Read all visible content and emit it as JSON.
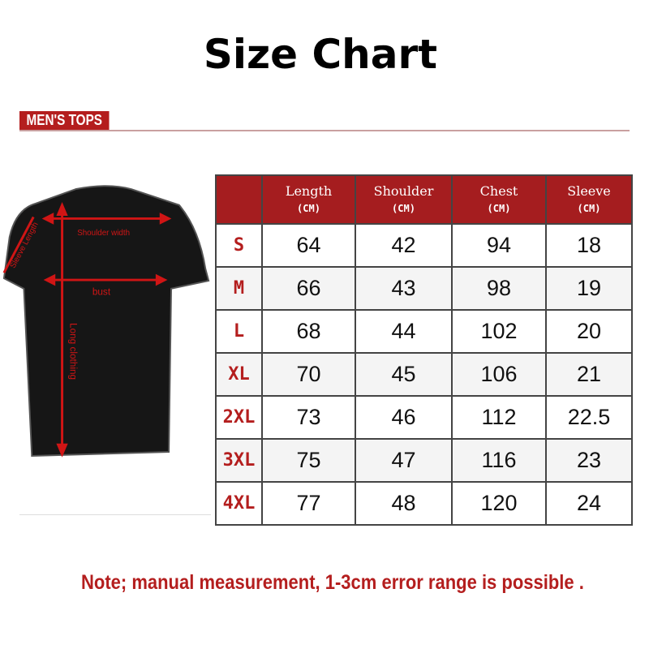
{
  "title": "Size Chart",
  "section": "MEN'S TOPS",
  "diagram": {
    "shoulder": "Shoulder width",
    "sleeve": "Sleeve Length",
    "bust": "bust",
    "length": "Long clothing"
  },
  "table": {
    "headers": [
      {
        "label": "Length",
        "unit": "(CM)"
      },
      {
        "label": "Shoulder",
        "unit": "(CM)"
      },
      {
        "label": "Chest",
        "unit": "(CM)"
      },
      {
        "label": "Sleeve",
        "unit": "(CM)"
      }
    ],
    "rows": [
      {
        "size": "S",
        "values": [
          "64",
          "42",
          "94",
          "18"
        ]
      },
      {
        "size": "M",
        "values": [
          "66",
          "43",
          "98",
          "19"
        ]
      },
      {
        "size": "L",
        "values": [
          "68",
          "44",
          "102",
          "20"
        ]
      },
      {
        "size": "XL",
        "values": [
          "70",
          "45",
          "106",
          "21"
        ]
      },
      {
        "size": "2XL",
        "values": [
          "73",
          "46",
          "112",
          "22.5"
        ]
      },
      {
        "size": "3XL",
        "values": [
          "75",
          "47",
          "116",
          "23"
        ]
      },
      {
        "size": "4XL",
        "values": [
          "77",
          "48",
          "120",
          "24"
        ]
      }
    ]
  },
  "note": "Note; manual measurement, 1-3cm error range is possible .",
  "colors": {
    "accent": "#b41e1e",
    "header_bg": "#a51d1f"
  }
}
